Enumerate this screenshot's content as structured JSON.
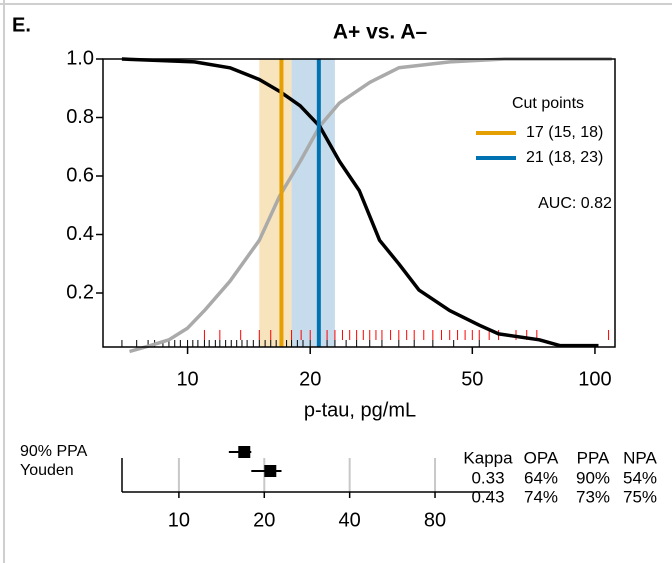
{
  "panel_label": "E.",
  "chart_data": [
    {
      "type": "line",
      "title": "A+ vs. A–",
      "xlabel": "p-tau, pg/mL",
      "xscale": "log",
      "xlim": [
        6.2,
        112
      ],
      "ylim": [
        0,
        1
      ],
      "xticks": [
        10,
        20,
        50,
        100
      ],
      "yticks": [
        0.2,
        0.4,
        0.6,
        0.8,
        {
          "value": 1,
          "label": "1.0"
        }
      ],
      "series": [
        {
          "color": "#aaaaaa",
          "x": [
            7.2,
            8.1,
            9,
            10,
            11,
            12.7,
            15,
            16.8,
            18.9,
            21.1,
            23.6,
            28,
            33,
            44,
            60,
            110
          ],
          "values": [
            0,
            0.02,
            0.04,
            0.08,
            0.14,
            0.24,
            0.38,
            0.53,
            0.65,
            0.77,
            0.85,
            0.92,
            0.97,
            0.99,
            1,
            1
          ]
        },
        {
          "color": "#000000",
          "x": [
            6.9,
            10.4,
            12.7,
            15,
            16.8,
            18.9,
            21.1,
            23.6,
            26.4,
            29.6,
            33,
            37,
            44,
            52,
            58,
            73,
            82,
            102
          ],
          "values": [
            1,
            0.99,
            0.97,
            0.93,
            0.89,
            0.84,
            0.77,
            0.65,
            0.55,
            0.38,
            0.3,
            0.21,
            0.14,
            0.09,
            0.06,
            0.04,
            0.02,
            0.02
          ]
        }
      ],
      "rug": [
        {
          "color": "#ff0000",
          "values": [
            11,
            12,
            13.5,
            15,
            16,
            17,
            18,
            19,
            20,
            21,
            22,
            23,
            24,
            25,
            26,
            27,
            28,
            29,
            30,
            31.5,
            33,
            34.5,
            36,
            38,
            40,
            42,
            44,
            46,
            48,
            50,
            52,
            55,
            58,
            64,
            68,
            72,
            108
          ]
        },
        {
          "color": "#000000",
          "values": [
            6.9,
            7.5,
            8,
            8.3,
            8.7,
            9,
            9.3,
            9.6,
            10,
            10.3,
            10.6,
            11,
            11.3,
            11.7,
            12,
            12.4,
            12.8,
            13.2,
            13.6,
            14,
            14.5,
            15,
            15.5,
            16,
            16.5,
            17,
            17.5,
            18,
            18.6,
            19.2,
            20,
            21,
            22,
            23,
            24.5,
            26,
            28,
            30,
            33,
            36,
            40,
            45,
            52
          ]
        }
      ],
      "legend_title": "Cut points",
      "cut_points": [
        {
          "label": "17 (15, 18)",
          "value": 17,
          "low": 15,
          "high": 18,
          "color": "#e69f00",
          "band_color": "#f7dfb0"
        },
        {
          "label": "21 (18, 23)",
          "value": 21,
          "low": 18,
          "high": 23,
          "color": "#0072b2",
          "band_color": "#bcd6ea"
        }
      ],
      "annotation": "AUC: 0.82"
    },
    {
      "type": "forest",
      "xscale": "log",
      "xlim": [
        6.3,
        125
      ],
      "xticks": [
        10,
        20,
        40,
        80
      ],
      "grid": true,
      "categories": [
        "90% PPA",
        "Youden"
      ],
      "values": [
        17,
        21
      ],
      "low": [
        15,
        18
      ],
      "high": [
        18,
        23
      ],
      "table": {
        "columns": [
          "Kappa",
          "OPA",
          "PPA",
          "NPA"
        ],
        "rows": [
          [
            "0.33",
            "64%",
            "90%",
            "54%"
          ],
          [
            "0.43",
            "74%",
            "73%",
            "75%"
          ]
        ]
      }
    }
  ]
}
